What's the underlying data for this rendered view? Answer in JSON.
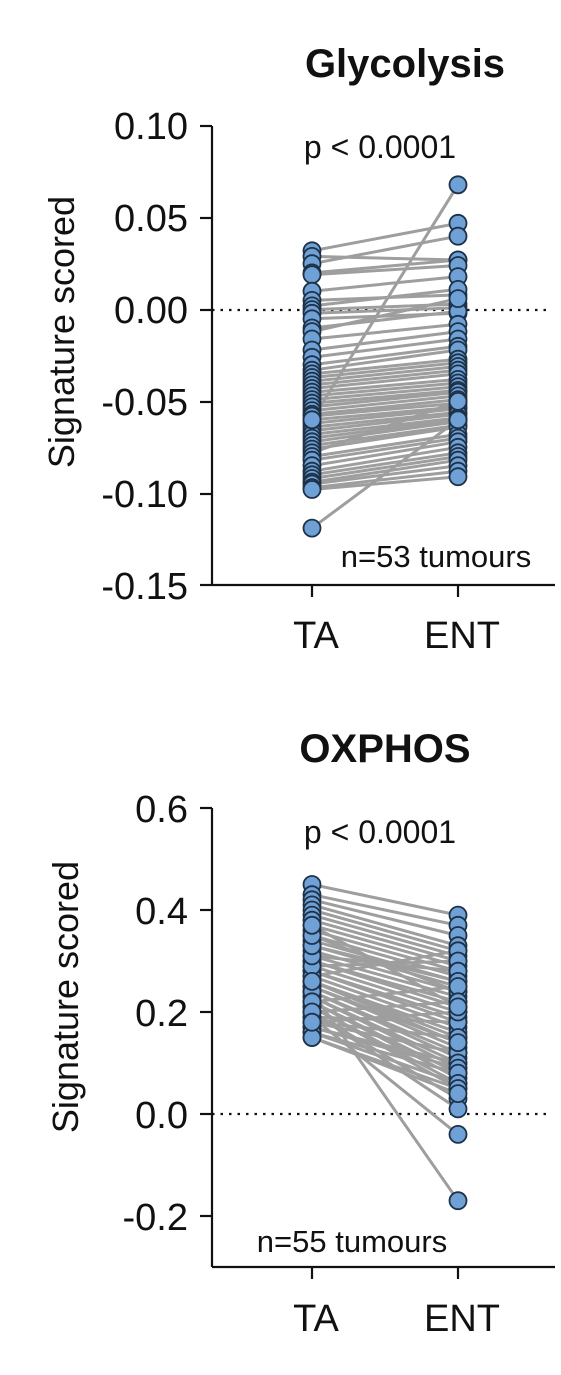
{
  "chart_data": [
    {
      "type": "paired-dot",
      "title": "Glycolysis",
      "ylabel": "Signature scored",
      "categories": [
        "TA",
        "ENT"
      ],
      "ylim": [
        -0.15,
        0.1
      ],
      "yticks": [
        "0.10",
        "0.05",
        "0.00",
        "-0.05",
        "-0.10",
        "-0.15"
      ],
      "ytick_values": [
        0.1,
        0.05,
        0.0,
        -0.05,
        -0.1,
        -0.15
      ],
      "reference_line": 0.0,
      "annotation": "p < 0.0001",
      "n_label": "n=53 tumours",
      "pairs": [
        [
          0.032,
          0.047
        ],
        [
          0.029,
          0.027
        ],
        [
          0.025,
          0.04
        ],
        [
          0.02,
          0.027
        ],
        [
          0.019,
          0.024
        ],
        [
          0.01,
          0.018
        ],
        [
          0.005,
          0.008
        ],
        [
          0.002,
          0.011
        ],
        [
          0.0,
          0.003
        ],
        [
          -0.002,
          0.001
        ],
        [
          -0.005,
          -0.002
        ],
        [
          -0.01,
          -0.001
        ],
        [
          -0.012,
          0.006
        ],
        [
          -0.016,
          -0.008
        ],
        [
          -0.022,
          -0.012
        ],
        [
          -0.026,
          -0.016
        ],
        [
          -0.03,
          -0.02
        ],
        [
          -0.033,
          -0.022
        ],
        [
          -0.035,
          -0.027
        ],
        [
          -0.037,
          -0.029
        ],
        [
          -0.039,
          -0.031
        ],
        [
          -0.041,
          -0.033
        ],
        [
          -0.043,
          -0.035
        ],
        [
          -0.045,
          -0.038
        ],
        [
          -0.047,
          -0.04
        ],
        [
          -0.049,
          -0.042
        ],
        [
          -0.051,
          -0.044
        ],
        [
          -0.053,
          -0.045
        ],
        [
          -0.055,
          -0.047
        ],
        [
          -0.057,
          -0.049
        ],
        [
          -0.058,
          -0.051
        ],
        [
          -0.06,
          -0.053
        ],
        [
          -0.062,
          -0.054
        ],
        [
          -0.064,
          -0.056
        ],
        [
          -0.066,
          -0.057
        ],
        [
          -0.068,
          -0.059
        ],
        [
          -0.07,
          -0.06
        ],
        [
          -0.072,
          -0.061
        ],
        [
          -0.074,
          -0.063
        ],
        [
          -0.076,
          -0.064
        ],
        [
          -0.078,
          -0.05
        ],
        [
          -0.08,
          -0.068
        ],
        [
          -0.082,
          -0.07
        ],
        [
          -0.085,
          -0.072
        ],
        [
          -0.088,
          -0.075
        ],
        [
          -0.09,
          -0.078
        ],
        [
          -0.092,
          -0.08
        ],
        [
          -0.094,
          -0.082
        ],
        [
          -0.095,
          -0.085
        ],
        [
          -0.097,
          -0.088
        ],
        [
          -0.098,
          -0.091
        ],
        [
          -0.06,
          0.068
        ],
        [
          -0.119,
          -0.06
        ]
      ]
    },
    {
      "type": "paired-dot",
      "title": "OXPHOS",
      "ylabel": "Signature scored",
      "categories": [
        "TA",
        "ENT"
      ],
      "ylim": [
        -0.3,
        0.6
      ],
      "yticks": [
        "0.6",
        "0.4",
        "0.2",
        "0.0",
        "-0.2"
      ],
      "ytick_values": [
        0.6,
        0.4,
        0.2,
        0.0,
        -0.2
      ],
      "reference_line": 0.0,
      "annotation": "p < 0.0001",
      "n_label": "n=55 tumours",
      "pairs": [
        [
          0.45,
          0.39
        ],
        [
          0.43,
          0.37
        ],
        [
          0.42,
          0.35
        ],
        [
          0.41,
          0.33
        ],
        [
          0.4,
          0.32
        ],
        [
          0.39,
          0.31
        ],
        [
          0.38,
          0.3
        ],
        [
          0.37,
          0.29
        ],
        [
          0.36,
          0.28
        ],
        [
          0.35,
          0.27
        ],
        [
          0.34,
          0.26
        ],
        [
          0.33,
          0.25
        ],
        [
          0.32,
          0.24
        ],
        [
          0.31,
          0.23
        ],
        [
          0.3,
          0.22
        ],
        [
          0.3,
          0.21
        ],
        [
          0.29,
          0.2
        ],
        [
          0.28,
          0.19
        ],
        [
          0.28,
          0.18
        ],
        [
          0.27,
          0.17
        ],
        [
          0.26,
          0.16
        ],
        [
          0.26,
          0.15
        ],
        [
          0.25,
          0.14
        ],
        [
          0.25,
          0.13
        ],
        [
          0.24,
          0.12
        ],
        [
          0.24,
          0.11
        ],
        [
          0.23,
          0.1
        ],
        [
          0.23,
          0.09
        ],
        [
          0.22,
          0.08
        ],
        [
          0.22,
          0.07
        ],
        [
          0.21,
          0.06
        ],
        [
          0.21,
          0.05
        ],
        [
          0.2,
          0.03
        ],
        [
          0.2,
          0.01
        ],
        [
          0.19,
          -0.04
        ],
        [
          0.19,
          0.18
        ],
        [
          0.18,
          0.15
        ],
        [
          0.18,
          0.12
        ],
        [
          0.17,
          0.1
        ],
        [
          0.17,
          0.09
        ],
        [
          0.16,
          0.08
        ],
        [
          0.16,
          0.06
        ],
        [
          0.15,
          0.05
        ],
        [
          0.15,
          0.04
        ],
        [
          0.24,
          -0.17
        ],
        [
          0.27,
          0.32
        ],
        [
          0.29,
          0.3
        ],
        [
          0.31,
          0.28
        ],
        [
          0.33,
          0.26
        ],
        [
          0.35,
          0.24
        ],
        [
          0.22,
          0.25
        ],
        [
          0.2,
          0.22
        ],
        [
          0.18,
          0.2
        ],
        [
          0.26,
          0.14
        ],
        [
          0.37,
          0.21
        ]
      ]
    }
  ]
}
